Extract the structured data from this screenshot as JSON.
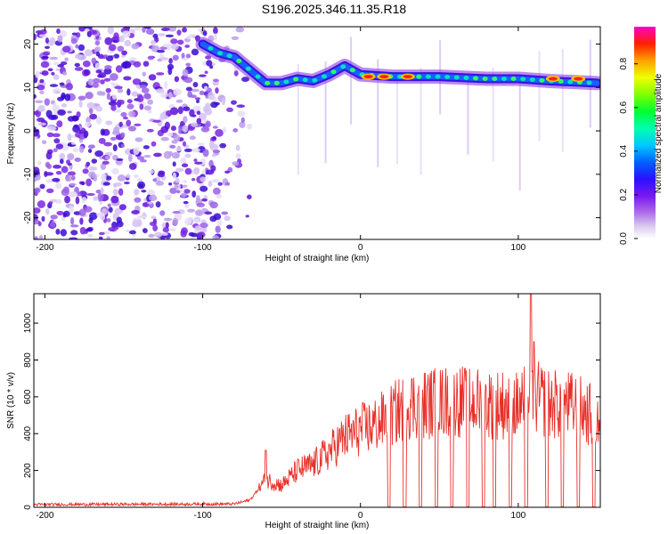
{
  "title": "S196.2025.346.11.35.R18",
  "chart_data": [
    {
      "type": "heatmap",
      "name": "spectrogram",
      "xlabel": "Height of straight line (km)",
      "ylabel": "Frequency (Hz)",
      "xlim": [
        -207,
        152
      ],
      "ylim": [
        -25,
        24
      ],
      "xticks": [
        -200,
        -100,
        0,
        100
      ],
      "yticks": [
        -20,
        -10,
        0,
        10,
        20
      ],
      "colorbar": {
        "label": "Normalized spectral amplitude",
        "ticks": [
          "0.0",
          "0.2",
          "0.4",
          "0.6",
          "0.8"
        ],
        "tick_values": [
          0.0,
          0.2,
          0.4,
          0.6,
          0.8
        ],
        "range": [
          0,
          0.97
        ]
      },
      "ridge": {
        "description": "dominant frequency track",
        "points": [
          {
            "x": -100,
            "y": 20
          },
          {
            "x": -90,
            "y": 18
          },
          {
            "x": -80,
            "y": 17
          },
          {
            "x": -70,
            "y": 14
          },
          {
            "x": -60,
            "y": 11
          },
          {
            "x": -50,
            "y": 11
          },
          {
            "x": -40,
            "y": 12
          },
          {
            "x": -30,
            "y": 11.5
          },
          {
            "x": -20,
            "y": 13
          },
          {
            "x": -10,
            "y": 15
          },
          {
            "x": 0,
            "y": 13
          },
          {
            "x": 20,
            "y": 12.5
          },
          {
            "x": 50,
            "y": 12.5
          },
          {
            "x": 80,
            "y": 12
          },
          {
            "x": 100,
            "y": 12
          },
          {
            "x": 120,
            "y": 11.5
          },
          {
            "x": 150,
            "y": 11
          }
        ],
        "peak_segments": [
          {
            "x": 5,
            "y": 12.5
          },
          {
            "x": 15,
            "y": 12.5
          },
          {
            "x": 30,
            "y": 12.5
          },
          {
            "x": 122,
            "y": 12
          },
          {
            "x": 138,
            "y": 12
          }
        ]
      }
    },
    {
      "type": "line",
      "name": "snr",
      "xlabel": "Height of straight line (km)",
      "ylabel": "SNR (10 * v/v)",
      "xlim": [
        -207,
        152
      ],
      "ylim": [
        0,
        1160
      ],
      "xticks": [
        -200,
        -100,
        0,
        100
      ],
      "yticks": [
        0,
        200,
        400,
        600,
        800,
        1000
      ],
      "color": "#e8302a",
      "envelope": [
        {
          "x": -207,
          "y": 15
        },
        {
          "x": -80,
          "y": 18
        },
        {
          "x": -70,
          "y": 40
        },
        {
          "x": -60,
          "y": 150
        },
        {
          "x": -50,
          "y": 120
        },
        {
          "x": -40,
          "y": 200
        },
        {
          "x": -30,
          "y": 230
        },
        {
          "x": -20,
          "y": 300
        },
        {
          "x": -10,
          "y": 380
        },
        {
          "x": 0,
          "y": 420
        },
        {
          "x": 10,
          "y": 450
        },
        {
          "x": 20,
          "y": 500
        },
        {
          "x": 30,
          "y": 560
        },
        {
          "x": 40,
          "y": 560
        },
        {
          "x": 50,
          "y": 570
        },
        {
          "x": 60,
          "y": 580
        },
        {
          "x": 70,
          "y": 570
        },
        {
          "x": 80,
          "y": 560
        },
        {
          "x": 90,
          "y": 560
        },
        {
          "x": 100,
          "y": 550
        },
        {
          "x": 110,
          "y": 600
        },
        {
          "x": 120,
          "y": 560
        },
        {
          "x": 130,
          "y": 560
        },
        {
          "x": 140,
          "y": 530
        },
        {
          "x": 152,
          "y": 470
        }
      ],
      "dropouts_x": [
        18,
        28,
        38,
        48,
        58,
        68,
        78,
        85,
        95,
        105,
        118,
        128,
        138,
        148
      ],
      "spikes": [
        {
          "x": -60,
          "y": 310
        },
        {
          "x": 108,
          "y": 1160
        },
        {
          "x": 110,
          "y": 900
        }
      ]
    }
  ]
}
